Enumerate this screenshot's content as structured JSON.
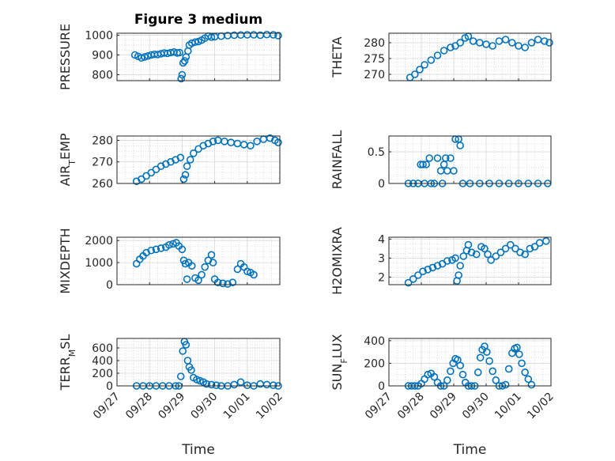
{
  "figure_title": "Figure 3 medium",
  "colors": {
    "marker": "#0072bd",
    "axis": "#262626",
    "grid": "#d0d0d0"
  },
  "chart_data": [
    {
      "type": "scatter",
      "ylabel": "PRESSURE",
      "xlabel": "",
      "xlim": [
        0,
        5
      ],
      "ylim": [
        770,
        1010
      ],
      "yticks": [
        800,
        900,
        1000
      ],
      "xticklabels": [
        "09/27",
        "09/28",
        "09/29",
        "09/30",
        "10/01",
        "10/02"
      ],
      "grid": true,
      "show_xticklabels": false,
      "points": [
        [
          0.55,
          900
        ],
        [
          0.65,
          893
        ],
        [
          0.75,
          885
        ],
        [
          0.85,
          890
        ],
        [
          0.95,
          895
        ],
        [
          1.05,
          900
        ],
        [
          1.15,
          903
        ],
        [
          1.25,
          902
        ],
        [
          1.35,
          906
        ],
        [
          1.45,
          910
        ],
        [
          1.55,
          908
        ],
        [
          1.65,
          912
        ],
        [
          1.75,
          915
        ],
        [
          1.85,
          910
        ],
        [
          1.92,
          912
        ],
        [
          1.97,
          780
        ],
        [
          2.0,
          800
        ],
        [
          2.03,
          860
        ],
        [
          2.08,
          870
        ],
        [
          2.12,
          890
        ],
        [
          2.18,
          920
        ],
        [
          2.22,
          950
        ],
        [
          2.3,
          960
        ],
        [
          2.4,
          965
        ],
        [
          2.5,
          968
        ],
        [
          2.6,
          975
        ],
        [
          2.7,
          985
        ],
        [
          2.8,
          995
        ],
        [
          2.9,
          990
        ],
        [
          3.0,
          992
        ],
        [
          3.2,
          995
        ],
        [
          3.4,
          998
        ],
        [
          3.6,
          1000
        ],
        [
          3.8,
          1001
        ],
        [
          4.0,
          1002
        ],
        [
          4.2,
          1002
        ],
        [
          4.4,
          1000
        ],
        [
          4.6,
          1003
        ],
        [
          4.8,
          1002
        ],
        [
          4.95,
          998
        ]
      ]
    },
    {
      "type": "scatter",
      "ylabel": "THETA",
      "xlabel": "",
      "xlim": [
        0,
        5
      ],
      "ylim": [
        268,
        283
      ],
      "yticks": [
        270,
        275,
        280
      ],
      "xticklabels": [
        "09/27",
        "09/28",
        "09/29",
        "09/30",
        "10/01",
        "10/02"
      ],
      "grid": true,
      "show_xticklabels": false,
      "points": [
        [
          0.65,
          269
        ],
        [
          0.8,
          270
        ],
        [
          0.95,
          271.5
        ],
        [
          1.1,
          273
        ],
        [
          1.3,
          274.5
        ],
        [
          1.5,
          276
        ],
        [
          1.7,
          277.5
        ],
        [
          1.9,
          278.5
        ],
        [
          2.05,
          279
        ],
        [
          2.2,
          280
        ],
        [
          2.35,
          281.5
        ],
        [
          2.45,
          282
        ],
        [
          2.6,
          280.5
        ],
        [
          2.8,
          280
        ],
        [
          3.0,
          279.5
        ],
        [
          3.2,
          279
        ],
        [
          3.4,
          280.5
        ],
        [
          3.6,
          281
        ],
        [
          3.8,
          280
        ],
        [
          4.0,
          279
        ],
        [
          4.2,
          278.5
        ],
        [
          4.4,
          280
        ],
        [
          4.6,
          281
        ],
        [
          4.8,
          280.5
        ],
        [
          4.95,
          280
        ]
      ]
    },
    {
      "type": "scatter",
      "ylabel": "AIR_TEMP",
      "ylabel_main": "AIR",
      "ylabel_sub": "T",
      "ylabel_rest": "EMP",
      "xlabel": "",
      "xlim": [
        0,
        5
      ],
      "ylim": [
        260,
        282
      ],
      "yticks": [
        260,
        270,
        280
      ],
      "xticklabels": [
        "09/27",
        "09/28",
        "09/29",
        "09/30",
        "10/01",
        "10/02"
      ],
      "grid": true,
      "show_xticklabels": false,
      "points": [
        [
          0.6,
          261
        ],
        [
          0.75,
          262
        ],
        [
          0.9,
          263.5
        ],
        [
          1.05,
          265
        ],
        [
          1.2,
          266.5
        ],
        [
          1.35,
          268
        ],
        [
          1.5,
          269
        ],
        [
          1.65,
          270
        ],
        [
          1.8,
          271
        ],
        [
          1.95,
          272
        ],
        [
          2.05,
          262
        ],
        [
          2.1,
          264
        ],
        [
          2.15,
          268
        ],
        [
          2.25,
          271
        ],
        [
          2.35,
          274
        ],
        [
          2.5,
          276
        ],
        [
          2.65,
          277.5
        ],
        [
          2.8,
          278.5
        ],
        [
          2.95,
          279.5
        ],
        [
          3.1,
          280
        ],
        [
          3.3,
          279.5
        ],
        [
          3.5,
          279
        ],
        [
          3.7,
          278.5
        ],
        [
          3.9,
          278
        ],
        [
          4.1,
          277.5
        ],
        [
          4.3,
          279.5
        ],
        [
          4.5,
          280.5
        ],
        [
          4.7,
          281
        ],
        [
          4.85,
          280
        ],
        [
          4.95,
          279
        ]
      ]
    },
    {
      "type": "scatter",
      "ylabel": "RAINFALL",
      "xlabel": "",
      "xlim": [
        0,
        5
      ],
      "ylim": [
        0,
        0.75
      ],
      "yticks": [
        0,
        0.5
      ],
      "xticklabels": [
        "09/27",
        "09/28",
        "09/29",
        "09/30",
        "10/01",
        "10/02"
      ],
      "grid": true,
      "show_xticklabels": false,
      "points": [
        [
          0.6,
          0
        ],
        [
          0.75,
          0
        ],
        [
          0.9,
          0
        ],
        [
          0.98,
          0.3
        ],
        [
          1.05,
          0.3
        ],
        [
          1.1,
          0
        ],
        [
          1.15,
          0.3
        ],
        [
          1.25,
          0.4
        ],
        [
          1.3,
          0
        ],
        [
          1.4,
          0
        ],
        [
          1.5,
          0.4
        ],
        [
          1.6,
          0.2
        ],
        [
          1.65,
          0
        ],
        [
          1.7,
          0.3
        ],
        [
          1.75,
          0.4
        ],
        [
          1.8,
          0.2
        ],
        [
          1.9,
          0.4
        ],
        [
          2.0,
          0.2
        ],
        [
          2.05,
          0.7
        ],
        [
          2.15,
          0.7
        ],
        [
          2.2,
          0.6
        ],
        [
          2.28,
          0
        ],
        [
          2.5,
          0
        ],
        [
          2.8,
          0
        ],
        [
          3.1,
          0
        ],
        [
          3.4,
          0
        ],
        [
          3.7,
          0
        ],
        [
          4.0,
          0
        ],
        [
          4.3,
          0
        ],
        [
          4.6,
          0
        ],
        [
          4.9,
          0
        ]
      ]
    },
    {
      "type": "scatter",
      "ylabel": "MIXDEPTH",
      "xlabel": "",
      "xlim": [
        0,
        5
      ],
      "ylim": [
        0,
        2150
      ],
      "yticks": [
        0,
        1000,
        2000
      ],
      "xticklabels": [
        "09/27",
        "09/28",
        "09/29",
        "09/30",
        "10/01",
        "10/02"
      ],
      "grid": true,
      "show_xticklabels": false,
      "points": [
        [
          0.6,
          950
        ],
        [
          0.7,
          1150
        ],
        [
          0.8,
          1300
        ],
        [
          0.9,
          1450
        ],
        [
          1.05,
          1550
        ],
        [
          1.2,
          1600
        ],
        [
          1.35,
          1650
        ],
        [
          1.5,
          1700
        ],
        [
          1.6,
          1800
        ],
        [
          1.72,
          1850
        ],
        [
          1.82,
          1900
        ],
        [
          1.9,
          1750
        ],
        [
          2.0,
          1600
        ],
        [
          2.05,
          1100
        ],
        [
          2.1,
          950
        ],
        [
          2.15,
          250
        ],
        [
          2.2,
          1000
        ],
        [
          2.3,
          850
        ],
        [
          2.4,
          300
        ],
        [
          2.5,
          200
        ],
        [
          2.6,
          450
        ],
        [
          2.7,
          800
        ],
        [
          2.8,
          1100
        ],
        [
          2.9,
          1350
        ],
        [
          2.95,
          1000
        ],
        [
          3.0,
          250
        ],
        [
          3.1,
          100
        ],
        [
          3.25,
          60
        ],
        [
          3.4,
          30
        ],
        [
          3.55,
          100
        ],
        [
          3.7,
          700
        ],
        [
          3.8,
          950
        ],
        [
          3.9,
          800
        ],
        [
          4.0,
          600
        ],
        [
          4.1,
          550
        ],
        [
          4.2,
          450
        ]
      ]
    },
    {
      "type": "scatter",
      "ylabel": "H2OMIXRA",
      "xlabel": "",
      "xlim": [
        0,
        5
      ],
      "ylim": [
        1.6,
        4.1
      ],
      "yticks": [
        2,
        3,
        4
      ],
      "xticklabels": [
        "09/27",
        "09/28",
        "09/29",
        "09/30",
        "10/01",
        "10/02"
      ],
      "grid": true,
      "show_xticklabels": false,
      "points": [
        [
          0.6,
          1.7
        ],
        [
          0.75,
          1.9
        ],
        [
          0.9,
          2.1
        ],
        [
          1.05,
          2.3
        ],
        [
          1.2,
          2.4
        ],
        [
          1.35,
          2.5
        ],
        [
          1.5,
          2.6
        ],
        [
          1.65,
          2.7
        ],
        [
          1.8,
          2.85
        ],
        [
          1.95,
          2.9
        ],
        [
          2.05,
          3.0
        ],
        [
          2.1,
          1.8
        ],
        [
          2.15,
          2.1
        ],
        [
          2.2,
          2.6
        ],
        [
          2.3,
          3.1
        ],
        [
          2.4,
          3.4
        ],
        [
          2.45,
          3.7
        ],
        [
          2.55,
          3.3
        ],
        [
          2.7,
          3.2
        ],
        [
          2.85,
          3.6
        ],
        [
          2.95,
          3.5
        ],
        [
          3.05,
          3.2
        ],
        [
          3.15,
          2.9
        ],
        [
          3.3,
          3.1
        ],
        [
          3.45,
          3.3
        ],
        [
          3.6,
          3.5
        ],
        [
          3.75,
          3.7
        ],
        [
          3.9,
          3.5
        ],
        [
          4.05,
          3.3
        ],
        [
          4.2,
          3.2
        ],
        [
          4.35,
          3.5
        ],
        [
          4.5,
          3.6
        ],
        [
          4.65,
          3.8
        ],
        [
          4.85,
          3.9
        ]
      ]
    },
    {
      "type": "scatter",
      "ylabel": "TERR_MSL",
      "ylabel_main": "TERR",
      "ylabel_sub": "M",
      "ylabel_rest": "SL",
      "xlabel": "Time",
      "xlim": [
        0,
        5
      ],
      "ylim": [
        0,
        750
      ],
      "yticks": [
        0,
        200,
        400,
        600
      ],
      "xticklabels": [
        "09/27",
        "09/28",
        "09/29",
        "09/30",
        "10/01",
        "10/02"
      ],
      "grid": true,
      "show_xticklabels": true,
      "points": [
        [
          0.6,
          0
        ],
        [
          0.8,
          0
        ],
        [
          1.0,
          0
        ],
        [
          1.2,
          0
        ],
        [
          1.4,
          0
        ],
        [
          1.6,
          0
        ],
        [
          1.8,
          0
        ],
        [
          1.9,
          0
        ],
        [
          1.96,
          150
        ],
        [
          2.02,
          550
        ],
        [
          2.07,
          700
        ],
        [
          2.12,
          650
        ],
        [
          2.17,
          400
        ],
        [
          2.22,
          300
        ],
        [
          2.28,
          250
        ],
        [
          2.35,
          130
        ],
        [
          2.45,
          100
        ],
        [
          2.55,
          80
        ],
        [
          2.65,
          60
        ],
        [
          2.75,
          30
        ],
        [
          2.9,
          20
        ],
        [
          3.05,
          10
        ],
        [
          3.2,
          0
        ],
        [
          3.4,
          0
        ],
        [
          3.6,
          20
        ],
        [
          3.8,
          60
        ],
        [
          4.0,
          10
        ],
        [
          4.2,
          0
        ],
        [
          4.4,
          30
        ],
        [
          4.6,
          20
        ],
        [
          4.8,
          10
        ],
        [
          4.95,
          0
        ]
      ]
    },
    {
      "type": "scatter",
      "ylabel": "SUN_FLUX",
      "ylabel_main": "SUN",
      "ylabel_sub": "F",
      "ylabel_rest": "LUX",
      "xlabel": "Time",
      "xlim": [
        0,
        5
      ],
      "ylim": [
        0,
        420
      ],
      "yticks": [
        0,
        200,
        400
      ],
      "xticklabels": [
        "09/27",
        "09/28",
        "09/29",
        "09/30",
        "10/01",
        "10/02"
      ],
      "grid": true,
      "show_xticklabels": true,
      "points": [
        [
          0.6,
          0
        ],
        [
          0.7,
          0
        ],
        [
          0.8,
          0
        ],
        [
          0.9,
          0
        ],
        [
          1.0,
          20
        ],
        [
          1.1,
          60
        ],
        [
          1.2,
          100
        ],
        [
          1.3,
          110
        ],
        [
          1.4,
          80
        ],
        [
          1.5,
          30
        ],
        [
          1.6,
          0
        ],
        [
          1.7,
          0
        ],
        [
          1.8,
          50
        ],
        [
          1.9,
          130
        ],
        [
          1.98,
          200
        ],
        [
          2.05,
          240
        ],
        [
          2.12,
          230
        ],
        [
          2.2,
          180
        ],
        [
          2.28,
          100
        ],
        [
          2.36,
          30
        ],
        [
          2.45,
          0
        ],
        [
          2.55,
          0
        ],
        [
          2.65,
          0
        ],
        [
          2.75,
          120
        ],
        [
          2.82,
          250
        ],
        [
          2.88,
          320
        ],
        [
          2.95,
          350
        ],
        [
          3.02,
          300
        ],
        [
          3.1,
          220
        ],
        [
          3.2,
          130
        ],
        [
          3.3,
          50
        ],
        [
          3.4,
          0
        ],
        [
          3.5,
          0
        ],
        [
          3.6,
          10
        ],
        [
          3.7,
          150
        ],
        [
          3.8,
          290
        ],
        [
          3.88,
          330
        ],
        [
          3.95,
          340
        ],
        [
          4.02,
          280
        ],
        [
          4.1,
          200
        ],
        [
          4.2,
          120
        ],
        [
          4.3,
          60
        ],
        [
          4.4,
          10
        ]
      ]
    }
  ]
}
